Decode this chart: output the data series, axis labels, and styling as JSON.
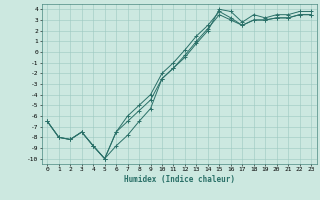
{
  "xlabel": "Humidex (Indice chaleur)",
  "bg_color": "#cce8e0",
  "grid_color": "#9dc8c0",
  "line_color": "#2a7068",
  "xlim": [
    -0.5,
    23.5
  ],
  "ylim": [
    -10.5,
    4.5
  ],
  "yticks": [
    -10,
    -9,
    -8,
    -7,
    -6,
    -5,
    -4,
    -3,
    -2,
    -1,
    0,
    1,
    2,
    3,
    4
  ],
  "xticks": [
    0,
    1,
    2,
    3,
    4,
    5,
    6,
    7,
    8,
    9,
    10,
    11,
    12,
    13,
    14,
    15,
    16,
    17,
    18,
    19,
    20,
    21,
    22,
    23
  ],
  "series": [
    {
      "x": [
        0,
        1,
        2,
        3,
        4,
        5,
        6,
        7,
        8,
        9,
        10,
        11,
        12,
        13,
        14,
        15,
        16,
        17,
        18,
        19,
        20,
        21,
        22,
        23
      ],
      "y": [
        -6.5,
        -8.0,
        -8.2,
        -7.5,
        -8.8,
        -10.0,
        -8.8,
        -7.8,
        -6.5,
        -5.3,
        -2.5,
        -1.5,
        -0.5,
        0.8,
        2.0,
        4.0,
        3.8,
        2.8,
        3.5,
        3.2,
        3.5,
        3.5,
        3.8,
        3.8
      ]
    },
    {
      "x": [
        0,
        1,
        2,
        3,
        4,
        5,
        6,
        7,
        8,
        9,
        10,
        11,
        12,
        13,
        14,
        15,
        16,
        17,
        18,
        19,
        20,
        21,
        22,
        23
      ],
      "y": [
        -6.5,
        -8.0,
        -8.2,
        -7.5,
        -8.8,
        -10.0,
        -7.5,
        -6.5,
        -5.5,
        -4.5,
        -2.5,
        -1.5,
        -0.3,
        1.0,
        2.2,
        3.5,
        3.0,
        2.5,
        3.0,
        3.0,
        3.2,
        3.2,
        3.5,
        3.5
      ]
    },
    {
      "x": [
        0,
        1,
        2,
        3,
        4,
        5,
        6,
        7,
        8,
        9,
        10,
        11,
        12,
        13,
        14,
        15,
        16,
        17,
        18,
        19,
        20,
        21,
        22,
        23
      ],
      "y": [
        -6.5,
        -8.0,
        -8.2,
        -7.5,
        -8.8,
        -10.0,
        -7.5,
        -6.0,
        -5.0,
        -4.0,
        -2.0,
        -1.0,
        0.2,
        1.5,
        2.5,
        3.8,
        3.2,
        2.5,
        3.0,
        3.0,
        3.2,
        3.2,
        3.5,
        3.5
      ]
    }
  ]
}
